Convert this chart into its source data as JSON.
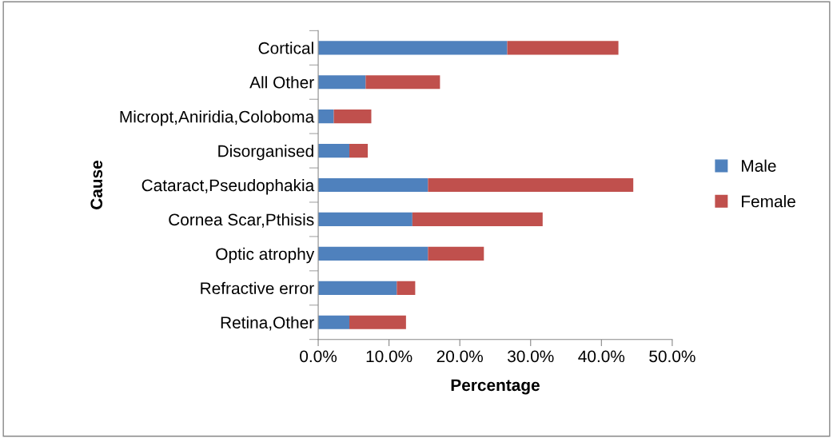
{
  "chart_data": {
    "type": "bar",
    "orientation": "horizontal",
    "stacked": true,
    "xlabel": "Percentage",
    "ylabel": "Cause",
    "categories": [
      "Cortical",
      "All Other",
      "Micropt,Aniridia,Coloboma",
      "Disorganised",
      "Cataract,Pseudophakia",
      "Cornea Scar,Pthisis",
      "Optic atrophy",
      "Refractive error",
      "Retina,Other"
    ],
    "series": [
      {
        "name": "Male",
        "color": "#4f81bd",
        "values": [
          26.7,
          6.7,
          2.2,
          4.4,
          15.5,
          13.3,
          15.5,
          11.1,
          4.4
        ]
      },
      {
        "name": "Female",
        "color": "#c0504d",
        "values": [
          15.7,
          10.5,
          5.3,
          2.6,
          29.0,
          18.4,
          7.9,
          2.6,
          8.0
        ]
      }
    ],
    "xlim": [
      0,
      50
    ],
    "xticks": [
      {
        "value": 0,
        "label": "0.0%"
      },
      {
        "value": 10,
        "label": "10.0%"
      },
      {
        "value": 20,
        "label": "20.0%"
      },
      {
        "value": 30,
        "label": "30.0%"
      },
      {
        "value": 40,
        "label": "40.0%"
      },
      {
        "value": 50,
        "label": "50.0%"
      }
    ],
    "grid": false,
    "legend": "right"
  }
}
